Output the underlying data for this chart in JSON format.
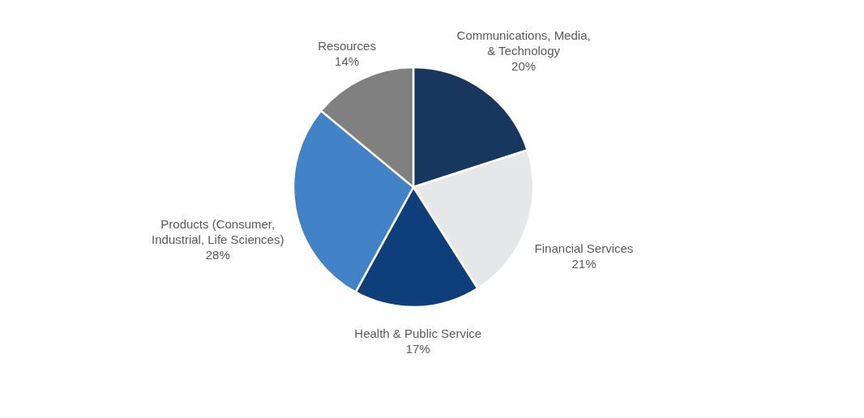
{
  "chart_data": {
    "type": "pie",
    "categories": [
      "Communications, Media,\n& Technology",
      "Financial Services",
      "Health & Public Service",
      "Products (Consumer,\nIndustrial, Life Sciences)",
      "Resources"
    ],
    "values": [
      20,
      21,
      17,
      28,
      14
    ],
    "colors": [
      "#17375e",
      "#e6e7e9",
      "#0f3f7a",
      "#4282c6",
      "#808080"
    ],
    "value_labels": [
      "20%",
      "21%",
      "17%",
      "28%",
      "14%"
    ]
  }
}
